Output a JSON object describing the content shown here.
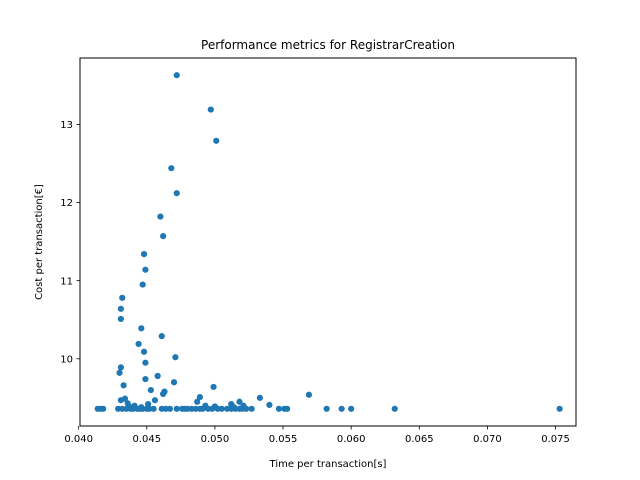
{
  "chart_data": {
    "type": "scatter",
    "title": "Performance metrics for RegistrarCreation",
    "xlabel": "Time per transaction[s]",
    "ylabel": "Cost per transaction[€]",
    "xlim": [
      0.0401,
      0.0765
    ],
    "ylim": [
      9.14,
      13.85
    ],
    "xticks": [
      0.04,
      0.045,
      0.05,
      0.055,
      0.06,
      0.065,
      0.07,
      0.075
    ],
    "xtick_labels": [
      "0.040",
      "0.045",
      "0.050",
      "0.055",
      "0.060",
      "0.065",
      "0.070",
      "0.075"
    ],
    "yticks": [
      10,
      11,
      12,
      13
    ],
    "ytick_labels": [
      "10",
      "11",
      "12",
      "13"
    ],
    "grid": false,
    "marker_color": "#1f77b4",
    "series": [
      {
        "points": [
          [
            0.0472,
            13.63
          ],
          [
            0.0497,
            13.19
          ],
          [
            0.0501,
            12.79
          ],
          [
            0.0468,
            12.44
          ],
          [
            0.0472,
            12.12
          ],
          [
            0.046,
            11.82
          ],
          [
            0.0462,
            11.57
          ],
          [
            0.0448,
            11.34
          ],
          [
            0.0449,
            11.14
          ],
          [
            0.0447,
            10.95
          ],
          [
            0.0432,
            10.78
          ],
          [
            0.0431,
            10.64
          ],
          [
            0.0431,
            10.51
          ],
          [
            0.0446,
            10.39
          ],
          [
            0.0461,
            10.29
          ],
          [
            0.0444,
            10.19
          ],
          [
            0.0448,
            10.09
          ],
          [
            0.0471,
            10.02
          ],
          [
            0.0449,
            9.95
          ],
          [
            0.0431,
            9.89
          ],
          [
            0.043,
            9.82
          ],
          [
            0.0458,
            9.78
          ],
          [
            0.0449,
            9.74
          ],
          [
            0.047,
            9.7
          ],
          [
            0.0433,
            9.66
          ],
          [
            0.0499,
            9.64
          ],
          [
            0.0453,
            9.6
          ],
          [
            0.0463,
            9.58
          ],
          [
            0.0462,
            9.55
          ],
          [
            0.0569,
            9.54
          ],
          [
            0.0489,
            9.51
          ],
          [
            0.0533,
            9.5
          ],
          [
            0.0434,
            9.49
          ],
          [
            0.0431,
            9.47
          ],
          [
            0.0456,
            9.47
          ],
          [
            0.0518,
            9.45
          ],
          [
            0.0487,
            9.45
          ],
          [
            0.0436,
            9.43
          ],
          [
            0.0512,
            9.42
          ],
          [
            0.0451,
            9.42
          ],
          [
            0.054,
            9.41
          ],
          [
            0.0493,
            9.4
          ],
          [
            0.0521,
            9.4
          ],
          [
            0.0441,
            9.4
          ],
          [
            0.05,
            9.39
          ],
          [
            0.0437,
            9.39
          ],
          [
            0.0446,
            9.38
          ],
          [
            0.0514,
            9.38
          ],
          [
            0.0414,
            9.36
          ],
          [
            0.0416,
            9.36
          ],
          [
            0.0418,
            9.36
          ],
          [
            0.0429,
            9.36
          ],
          [
            0.0432,
            9.36
          ],
          [
            0.0435,
            9.36
          ],
          [
            0.0438,
            9.36
          ],
          [
            0.044,
            9.36
          ],
          [
            0.0443,
            9.36
          ],
          [
            0.0445,
            9.36
          ],
          [
            0.0447,
            9.36
          ],
          [
            0.045,
            9.36
          ],
          [
            0.0452,
            9.36
          ],
          [
            0.0455,
            9.36
          ],
          [
            0.0461,
            9.36
          ],
          [
            0.0464,
            9.36
          ],
          [
            0.0467,
            9.36
          ],
          [
            0.0472,
            9.36
          ],
          [
            0.0476,
            9.36
          ],
          [
            0.0478,
            9.36
          ],
          [
            0.048,
            9.36
          ],
          [
            0.0483,
            9.36
          ],
          [
            0.0486,
            9.36
          ],
          [
            0.0489,
            9.36
          ],
          [
            0.0491,
            9.36
          ],
          [
            0.0495,
            9.36
          ],
          [
            0.0498,
            9.36
          ],
          [
            0.0502,
            9.36
          ],
          [
            0.0505,
            9.36
          ],
          [
            0.0509,
            9.36
          ],
          [
            0.0512,
            9.36
          ],
          [
            0.0515,
            9.36
          ],
          [
            0.0518,
            9.36
          ],
          [
            0.052,
            9.36
          ],
          [
            0.0523,
            9.36
          ],
          [
            0.0527,
            9.36
          ],
          [
            0.0547,
            9.36
          ],
          [
            0.0551,
            9.36
          ],
          [
            0.0553,
            9.36
          ],
          [
            0.0582,
            9.36
          ],
          [
            0.0593,
            9.36
          ],
          [
            0.06,
            9.36
          ],
          [
            0.0632,
            9.36
          ],
          [
            0.0753,
            9.36
          ]
        ]
      }
    ]
  }
}
